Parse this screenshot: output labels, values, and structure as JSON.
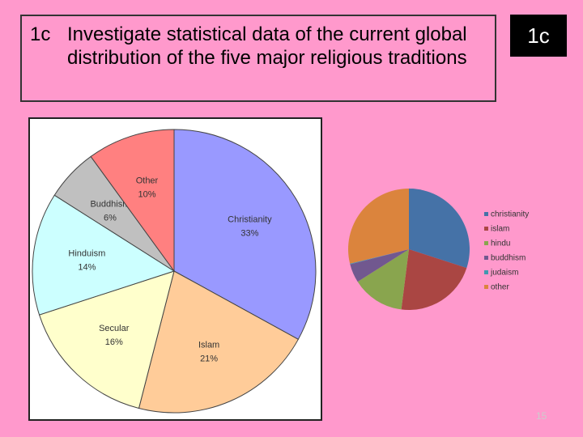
{
  "slide": {
    "title_number": "1c",
    "title": "Investigate statistical data of the current global distribution of the five major religious traditions",
    "badge": "1c",
    "page_number": "15"
  },
  "chart_data": [
    {
      "type": "pie",
      "categories": [
        "Christianity",
        "Islam",
        "Secular",
        "Hinduism",
        "Buddhism",
        "Other"
      ],
      "values": [
        33,
        21,
        16,
        14,
        6,
        10
      ],
      "value_labels": [
        "33%",
        "21%",
        "16%",
        "14%",
        "6%",
        "10%"
      ],
      "colors": [
        "#9999ff",
        "#ffcc99",
        "#ffffcc",
        "#ccffff",
        "#c0c0c0",
        "#ff8080"
      ]
    },
    {
      "type": "pie",
      "categories": [
        "christianity",
        "islam",
        "hindu",
        "buddhism",
        "judaism",
        "other"
      ],
      "values": [
        30,
        22,
        14,
        5,
        0.2,
        28.8
      ],
      "colors": [
        "#4572a7",
        "#aa4643",
        "#89a54e",
        "#71588f",
        "#4198af",
        "#db843d"
      ],
      "legend": "right"
    }
  ]
}
